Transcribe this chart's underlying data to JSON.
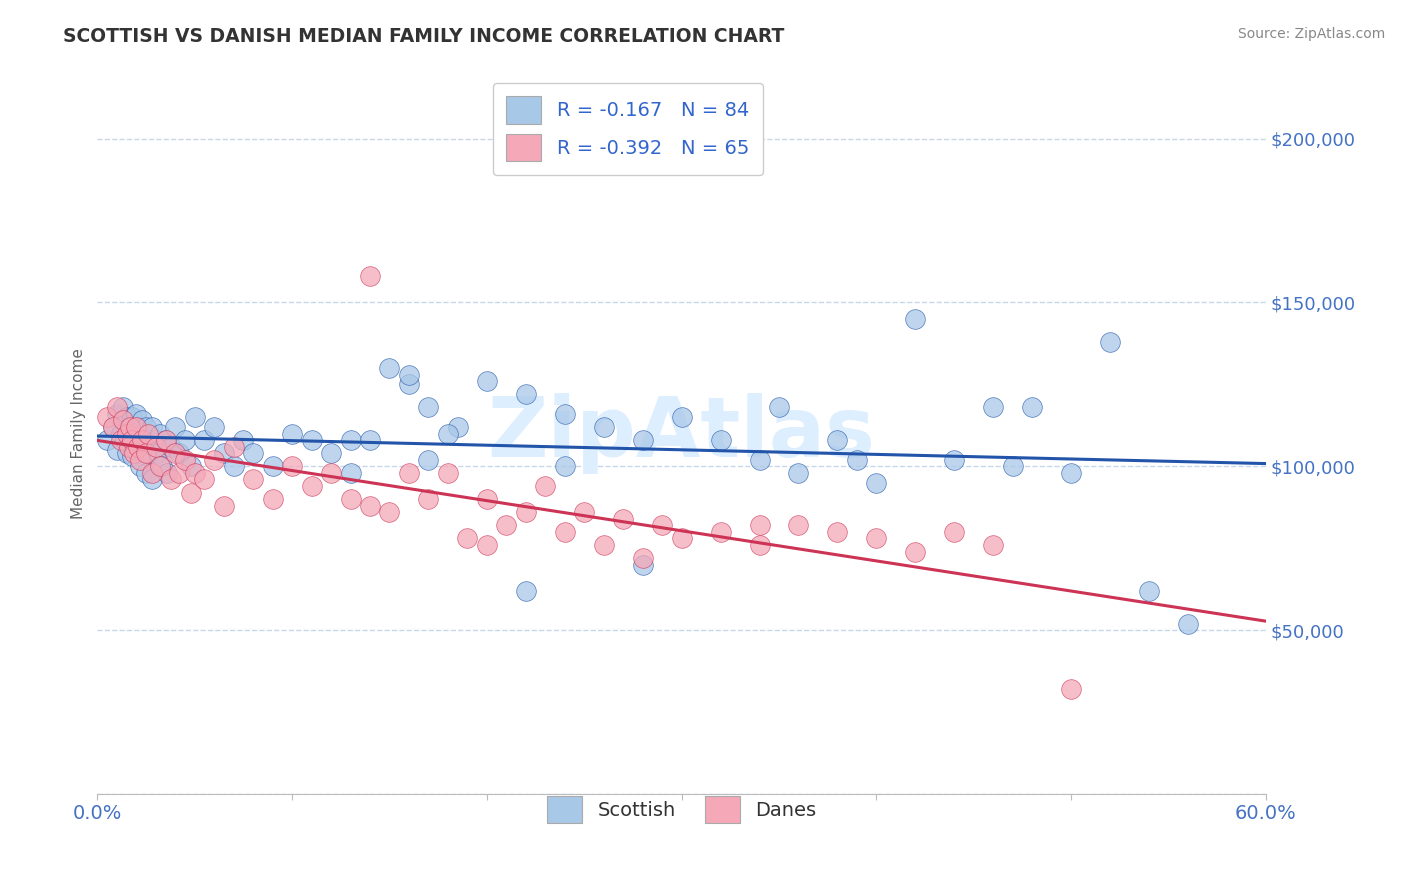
{
  "title": "SCOTTISH VS DANISH MEDIAN FAMILY INCOME CORRELATION CHART",
  "source_text": "Source: ZipAtlas.com",
  "ylabel": "Median Family Income",
  "xlim": [
    0.0,
    0.6
  ],
  "ylim": [
    0,
    220000
  ],
  "yticks": [
    0,
    50000,
    100000,
    150000,
    200000
  ],
  "ytick_labels": [
    "",
    "$50,000",
    "$100,000",
    "$150,000",
    "$200,000"
  ],
  "scottish_color": "#a8c8e8",
  "danes_color": "#f4a8b8",
  "scottish_line_color": "#2255aa",
  "danes_line_color": "#cc3355",
  "scottish_R": -0.167,
  "scottish_N": 84,
  "danes_R": -0.392,
  "danes_N": 65,
  "background_color": "#ffffff",
  "grid_color": "#c8d8e8",
  "title_color": "#333333",
  "axis_label_color": "#4472c4",
  "legend_text_color": "#3366cc",
  "watermark_color": "#ddeeff",
  "scottish_intercept": 112000,
  "scottish_slope": -22000,
  "danes_intercept": 107000,
  "danes_slope": -55000,
  "scottish_x": [
    0.005,
    0.008,
    0.01,
    0.01,
    0.012,
    0.013,
    0.014,
    0.015,
    0.015,
    0.016,
    0.017,
    0.018,
    0.018,
    0.019,
    0.02,
    0.02,
    0.021,
    0.022,
    0.022,
    0.023,
    0.024,
    0.025,
    0.025,
    0.026,
    0.027,
    0.028,
    0.028,
    0.03,
    0.031,
    0.032,
    0.033,
    0.035,
    0.036,
    0.038,
    0.04,
    0.042,
    0.045,
    0.048,
    0.05,
    0.055,
    0.06,
    0.065,
    0.07,
    0.075,
    0.08,
    0.09,
    0.1,
    0.11,
    0.12,
    0.13,
    0.14,
    0.15,
    0.16,
    0.17,
    0.185,
    0.2,
    0.22,
    0.24,
    0.26,
    0.28,
    0.3,
    0.32,
    0.34,
    0.36,
    0.38,
    0.4,
    0.42,
    0.44,
    0.46,
    0.48,
    0.5,
    0.52,
    0.54,
    0.56,
    0.24,
    0.28,
    0.13,
    0.17,
    0.35,
    0.39,
    0.18,
    0.16,
    0.22,
    0.47
  ],
  "scottish_y": [
    108000,
    112000,
    116000,
    105000,
    110000,
    118000,
    108000,
    115000,
    104000,
    112000,
    108000,
    115000,
    103000,
    110000,
    116000,
    105000,
    112000,
    108000,
    100000,
    114000,
    106000,
    112000,
    98000,
    108000,
    104000,
    112000,
    96000,
    108000,
    104000,
    110000,
    100000,
    108000,
    98000,
    106000,
    112000,
    104000,
    108000,
    100000,
    115000,
    108000,
    112000,
    104000,
    100000,
    108000,
    104000,
    100000,
    110000,
    108000,
    104000,
    108000,
    108000,
    130000,
    125000,
    118000,
    112000,
    126000,
    122000,
    116000,
    112000,
    108000,
    115000,
    108000,
    102000,
    98000,
    108000,
    95000,
    145000,
    102000,
    118000,
    118000,
    98000,
    138000,
    62000,
    52000,
    100000,
    70000,
    98000,
    102000,
    118000,
    102000,
    110000,
    128000,
    62000,
    100000
  ],
  "danes_x": [
    0.005,
    0.008,
    0.01,
    0.012,
    0.013,
    0.015,
    0.016,
    0.017,
    0.018,
    0.019,
    0.02,
    0.021,
    0.022,
    0.023,
    0.025,
    0.026,
    0.028,
    0.03,
    0.032,
    0.035,
    0.038,
    0.04,
    0.042,
    0.045,
    0.048,
    0.05,
    0.055,
    0.06,
    0.065,
    0.07,
    0.08,
    0.09,
    0.1,
    0.11,
    0.12,
    0.13,
    0.14,
    0.15,
    0.16,
    0.17,
    0.18,
    0.19,
    0.2,
    0.21,
    0.22,
    0.23,
    0.24,
    0.25,
    0.26,
    0.27,
    0.28,
    0.29,
    0.3,
    0.32,
    0.34,
    0.36,
    0.38,
    0.4,
    0.42,
    0.44,
    0.46,
    0.14,
    0.2,
    0.34,
    0.5
  ],
  "danes_y": [
    115000,
    112000,
    118000,
    108000,
    114000,
    110000,
    106000,
    112000,
    108000,
    104000,
    112000,
    106000,
    102000,
    108000,
    104000,
    110000,
    98000,
    106000,
    100000,
    108000,
    96000,
    104000,
    98000,
    102000,
    92000,
    98000,
    96000,
    102000,
    88000,
    106000,
    96000,
    90000,
    100000,
    94000,
    98000,
    90000,
    88000,
    86000,
    98000,
    90000,
    98000,
    78000,
    90000,
    82000,
    86000,
    94000,
    80000,
    86000,
    76000,
    84000,
    72000,
    82000,
    78000,
    80000,
    76000,
    82000,
    80000,
    78000,
    74000,
    80000,
    76000,
    158000,
    76000,
    82000,
    32000
  ]
}
